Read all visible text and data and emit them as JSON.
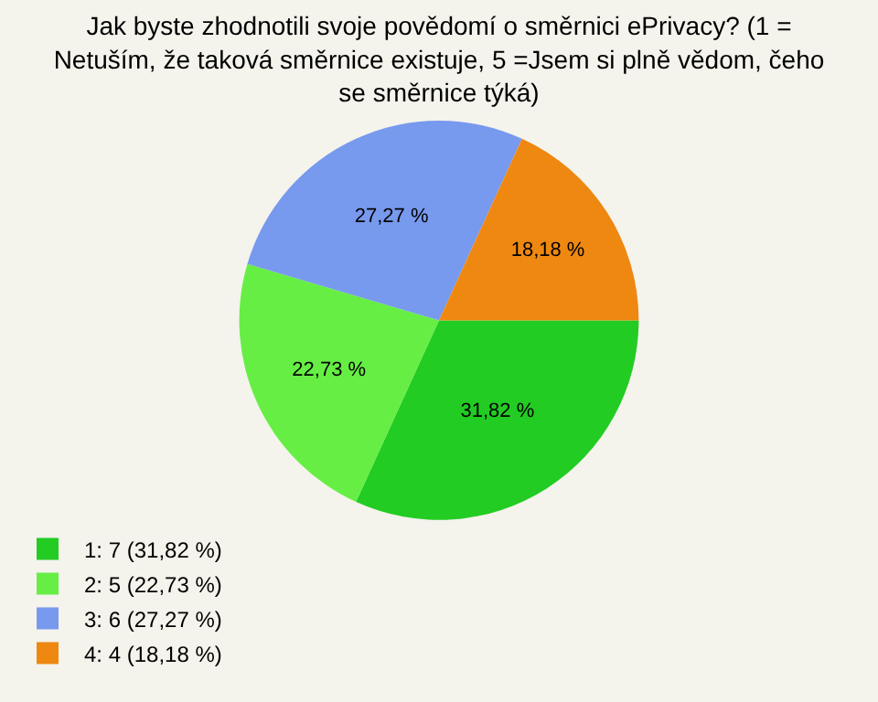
{
  "chart_data": {
    "type": "pie",
    "title": "Jak byste zhodnotili svoje povědomí o směrnici ePrivacy? (1 =\nNetuším, že taková směrnice existuje, 5 =Jsem si plně vědom, čeho\nse směrnice týká)",
    "categories": [
      "1: 7 (31,82 %)",
      "2: 5 (22,73 %)",
      "3: 6 (27,27 %)",
      "4: 4 (18,18 %)"
    ],
    "values": [
      31.82,
      22.73,
      27.27,
      18.18
    ],
    "value_labels": [
      "31,82 %",
      "22,73 %",
      "27,27 %",
      "18,18 %"
    ],
    "colors": [
      "#22cc22",
      "#66ee44",
      "#7799ee",
      "#ee8811"
    ],
    "legend": "bottom left"
  }
}
